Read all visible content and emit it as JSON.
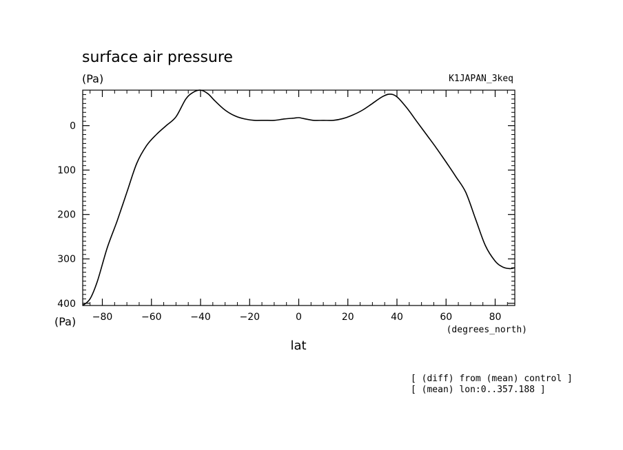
{
  "chart_data": {
    "type": "line",
    "title": "surface air pressure",
    "y_unit": "(Pa)",
    "experiment": "K1JAPAN_3keq",
    "xlabel": "lat",
    "x_unit": "(degrees_north)",
    "y_unit_bottom": "(Pa)",
    "xlim": [
      -88,
      88
    ],
    "ylim": [
      405,
      -80
    ],
    "y_inverted": true,
    "xticks": [
      -80,
      -60,
      -40,
      -20,
      0,
      20,
      40,
      60,
      80
    ],
    "yticks": [
      0,
      100,
      200,
      300,
      400
    ],
    "notes": [
      "[ (diff) from (mean) control ]",
      "[ (mean) lon:0..357.188 ]"
    ],
    "series": [
      {
        "name": "surface air pressure",
        "x": [
          -88,
          -85,
          -82,
          -78,
          -74,
          -70,
          -66,
          -62,
          -58,
          -54,
          -50,
          -46,
          -43,
          -40,
          -37,
          -34,
          -30,
          -26,
          -22,
          -18,
          -14,
          -10,
          -6,
          -2,
          0,
          2,
          6,
          10,
          14,
          18,
          22,
          26,
          30,
          34,
          37,
          40,
          44,
          48,
          52,
          56,
          60,
          64,
          68,
          72,
          76,
          80,
          83,
          86,
          88
        ],
        "values": [
          405,
          390,
          350,
          275,
          215,
          150,
          85,
          45,
          20,
          0,
          -20,
          -60,
          -75,
          -80,
          -72,
          -55,
          -35,
          -22,
          -15,
          -12,
          -12,
          -12,
          -15,
          -17,
          -18,
          -16,
          -12,
          -12,
          -12,
          -16,
          -24,
          -35,
          -50,
          -65,
          -71,
          -65,
          -40,
          -10,
          20,
          50,
          82,
          115,
          150,
          210,
          270,
          305,
          318,
          322,
          320
        ]
      }
    ]
  }
}
